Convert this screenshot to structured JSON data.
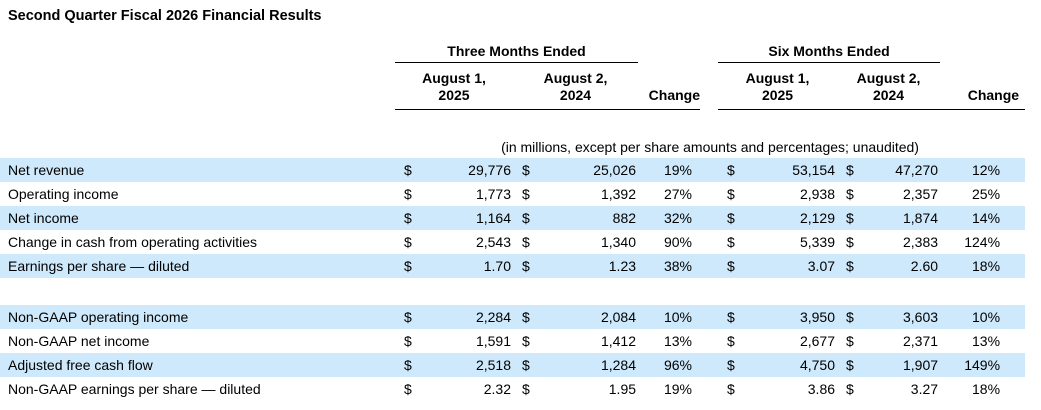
{
  "title": "Second Quarter Fiscal 2026 Financial Results",
  "table": {
    "currency": "$",
    "note": "(in millions, except per share amounts and percentages; unaudited)",
    "groups": [
      {
        "label": "Three Months Ended",
        "col1_line1": "August 1,",
        "col1_line2": "2025",
        "col2_line1": "August 2,",
        "col2_line2": "2024",
        "change_label": "Change"
      },
      {
        "label": "Six Months Ended",
        "col1_line1": "August 1,",
        "col1_line2": "2025",
        "col2_line1": "August 2,",
        "col2_line2": "2024",
        "change_label": "Change"
      }
    ],
    "rows": [
      {
        "label": "Net revenue",
        "tm_2025": "29,776",
        "tm_2024": "25,026",
        "tm_change": "19%",
        "sm_2025": "53,154",
        "sm_2024": "47,270",
        "sm_change": "12%",
        "shaded": true
      },
      {
        "label": "Operating income",
        "tm_2025": "1,773",
        "tm_2024": "1,392",
        "tm_change": "27%",
        "sm_2025": "2,938",
        "sm_2024": "2,357",
        "sm_change": "25%",
        "shaded": false
      },
      {
        "label": "Net income",
        "tm_2025": "1,164",
        "tm_2024": "882",
        "tm_change": "32%",
        "sm_2025": "2,129",
        "sm_2024": "1,874",
        "sm_change": "14%",
        "shaded": true
      },
      {
        "label": "Change in cash from operating activities",
        "tm_2025": "2,543",
        "tm_2024": "1,340",
        "tm_change": "90%",
        "sm_2025": "5,339",
        "sm_2024": "2,383",
        "sm_change": "124%",
        "shaded": false
      },
      {
        "label": "Earnings per share — diluted",
        "tm_2025": "1.70",
        "tm_2024": "1.23",
        "tm_change": "38%",
        "sm_2025": "3.07",
        "sm_2024": "2.60",
        "sm_change": "18%",
        "shaded": true
      },
      {
        "label": "Non-GAAP operating income",
        "tm_2025": "2,284",
        "tm_2024": "2,084",
        "tm_change": "10%",
        "sm_2025": "3,950",
        "sm_2024": "3,603",
        "sm_change": "10%",
        "shaded": true
      },
      {
        "label": "Non-GAAP net income",
        "tm_2025": "1,591",
        "tm_2024": "1,412",
        "tm_change": "13%",
        "sm_2025": "2,677",
        "sm_2024": "2,371",
        "sm_change": "13%",
        "shaded": false
      },
      {
        "label": "Adjusted free cash flow",
        "tm_2025": "2,518",
        "tm_2024": "1,284",
        "tm_change": "96%",
        "sm_2025": "4,750",
        "sm_2024": "1,907",
        "sm_change": "149%",
        "shaded": true
      },
      {
        "label": "Non-GAAP earnings per share — diluted",
        "tm_2025": "2.32",
        "tm_2024": "1.95",
        "tm_change": "19%",
        "sm_2025": "3.86",
        "sm_2024": "3.27",
        "sm_change": "18%",
        "shaded": false
      }
    ]
  },
  "colors": {
    "row_highlight": "#cee9fb",
    "text": "#000000",
    "rule": "#000000"
  }
}
